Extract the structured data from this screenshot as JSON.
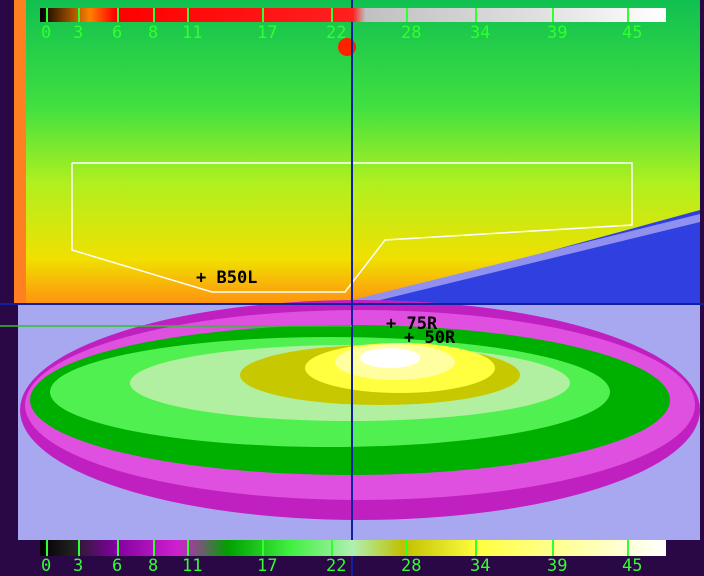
{
  "scale_ticks": [
    0,
    3,
    6,
    8,
    11,
    17,
    22,
    28,
    34,
    39,
    45
  ],
  "annotations": [
    "+ B50L",
    "+ 75R",
    "+ 50R"
  ]
}
